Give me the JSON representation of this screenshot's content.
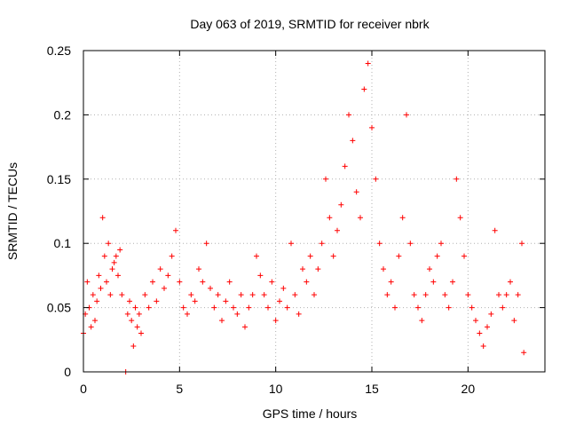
{
  "chart_data": {
    "type": "scatter",
    "title": "Day 063 of 2019, SRMTID for receiver nbrk",
    "xlabel": "GPS time / hours",
    "ylabel": "SRMTID / TECUs",
    "xlim": [
      0,
      24
    ],
    "ylim": [
      0,
      0.25
    ],
    "x_ticks": [
      0,
      5,
      10,
      15,
      20
    ],
    "x_tick_labels": [
      "0",
      "5",
      "10",
      "15",
      "20"
    ],
    "y_ticks": [
      0,
      0.05,
      0.1,
      0.15,
      0.2,
      0.25
    ],
    "y_tick_labels": [
      "0",
      "0.05",
      "0.1",
      "0.15",
      "0.2",
      "0.25"
    ],
    "grid": true,
    "marker": "+",
    "marker_color": "#ff0000",
    "series": [
      {
        "name": "SRMTID",
        "points": [
          [
            0.0,
            0.03
          ],
          [
            0.1,
            0.045
          ],
          [
            0.2,
            0.07
          ],
          [
            0.3,
            0.05
          ],
          [
            0.4,
            0.035
          ],
          [
            0.5,
            0.06
          ],
          [
            0.6,
            0.04
          ],
          [
            0.7,
            0.055
          ],
          [
            0.8,
            0.075
          ],
          [
            0.9,
            0.065
          ],
          [
            1.0,
            0.12
          ],
          [
            1.1,
            0.09
          ],
          [
            1.2,
            0.07
          ],
          [
            1.3,
            0.1
          ],
          [
            1.4,
            0.06
          ],
          [
            1.5,
            0.08
          ],
          [
            1.6,
            0.085
          ],
          [
            1.7,
            0.09
          ],
          [
            1.8,
            0.075
          ],
          [
            1.9,
            0.095
          ],
          [
            2.0,
            0.06
          ],
          [
            2.2,
            0.0
          ],
          [
            2.3,
            0.045
          ],
          [
            2.4,
            0.055
          ],
          [
            2.5,
            0.04
          ],
          [
            2.6,
            0.02
          ],
          [
            2.7,
            0.05
          ],
          [
            2.8,
            0.035
          ],
          [
            2.9,
            0.045
          ],
          [
            3.0,
            0.03
          ],
          [
            3.2,
            0.06
          ],
          [
            3.4,
            0.05
          ],
          [
            3.6,
            0.07
          ],
          [
            3.8,
            0.055
          ],
          [
            4.0,
            0.08
          ],
          [
            4.2,
            0.065
          ],
          [
            4.4,
            0.075
          ],
          [
            4.6,
            0.09
          ],
          [
            4.8,
            0.11
          ],
          [
            5.0,
            0.07
          ],
          [
            5.2,
            0.05
          ],
          [
            5.4,
            0.045
          ],
          [
            5.6,
            0.06
          ],
          [
            5.8,
            0.055
          ],
          [
            6.0,
            0.08
          ],
          [
            6.2,
            0.07
          ],
          [
            6.4,
            0.1
          ],
          [
            6.6,
            0.065
          ],
          [
            6.8,
            0.05
          ],
          [
            7.0,
            0.06
          ],
          [
            7.2,
            0.04
          ],
          [
            7.4,
            0.055
          ],
          [
            7.6,
            0.07
          ],
          [
            7.8,
            0.05
          ],
          [
            8.0,
            0.045
          ],
          [
            8.2,
            0.06
          ],
          [
            8.4,
            0.035
          ],
          [
            8.6,
            0.05
          ],
          [
            8.8,
            0.06
          ],
          [
            9.0,
            0.09
          ],
          [
            9.2,
            0.075
          ],
          [
            9.4,
            0.06
          ],
          [
            9.6,
            0.05
          ],
          [
            9.8,
            0.07
          ],
          [
            10.0,
            0.04
          ],
          [
            10.2,
            0.055
          ],
          [
            10.4,
            0.065
          ],
          [
            10.6,
            0.05
          ],
          [
            10.8,
            0.1
          ],
          [
            11.0,
            0.06
          ],
          [
            11.2,
            0.045
          ],
          [
            11.4,
            0.08
          ],
          [
            11.6,
            0.07
          ],
          [
            11.8,
            0.09
          ],
          [
            12.0,
            0.06
          ],
          [
            12.2,
            0.08
          ],
          [
            12.4,
            0.1
          ],
          [
            12.6,
            0.15
          ],
          [
            12.8,
            0.12
          ],
          [
            13.0,
            0.09
          ],
          [
            13.2,
            0.11
          ],
          [
            13.4,
            0.13
          ],
          [
            13.6,
            0.16
          ],
          [
            13.8,
            0.2
          ],
          [
            14.0,
            0.18
          ],
          [
            14.2,
            0.14
          ],
          [
            14.4,
            0.12
          ],
          [
            14.6,
            0.22
          ],
          [
            14.8,
            0.24
          ],
          [
            15.0,
            0.19
          ],
          [
            15.2,
            0.15
          ],
          [
            15.4,
            0.1
          ],
          [
            15.6,
            0.08
          ],
          [
            15.8,
            0.06
          ],
          [
            16.0,
            0.07
          ],
          [
            16.2,
            0.05
          ],
          [
            16.4,
            0.09
          ],
          [
            16.6,
            0.12
          ],
          [
            16.8,
            0.2
          ],
          [
            17.0,
            0.1
          ],
          [
            17.2,
            0.06
          ],
          [
            17.4,
            0.05
          ],
          [
            17.6,
            0.04
          ],
          [
            17.8,
            0.06
          ],
          [
            18.0,
            0.08
          ],
          [
            18.2,
            0.07
          ],
          [
            18.4,
            0.09
          ],
          [
            18.6,
            0.1
          ],
          [
            18.8,
            0.06
          ],
          [
            19.0,
            0.05
          ],
          [
            19.2,
            0.07
          ],
          [
            19.4,
            0.15
          ],
          [
            19.6,
            0.12
          ],
          [
            19.8,
            0.09
          ],
          [
            20.0,
            0.06
          ],
          [
            20.2,
            0.05
          ],
          [
            20.4,
            0.04
          ],
          [
            20.6,
            0.03
          ],
          [
            20.8,
            0.02
          ],
          [
            21.0,
            0.035
          ],
          [
            21.2,
            0.045
          ],
          [
            21.4,
            0.11
          ],
          [
            21.6,
            0.06
          ],
          [
            21.8,
            0.05
          ],
          [
            22.0,
            0.06
          ],
          [
            22.2,
            0.07
          ],
          [
            22.4,
            0.04
          ],
          [
            22.6,
            0.06
          ],
          [
            22.8,
            0.1
          ],
          [
            22.9,
            0.015
          ]
        ]
      }
    ]
  }
}
